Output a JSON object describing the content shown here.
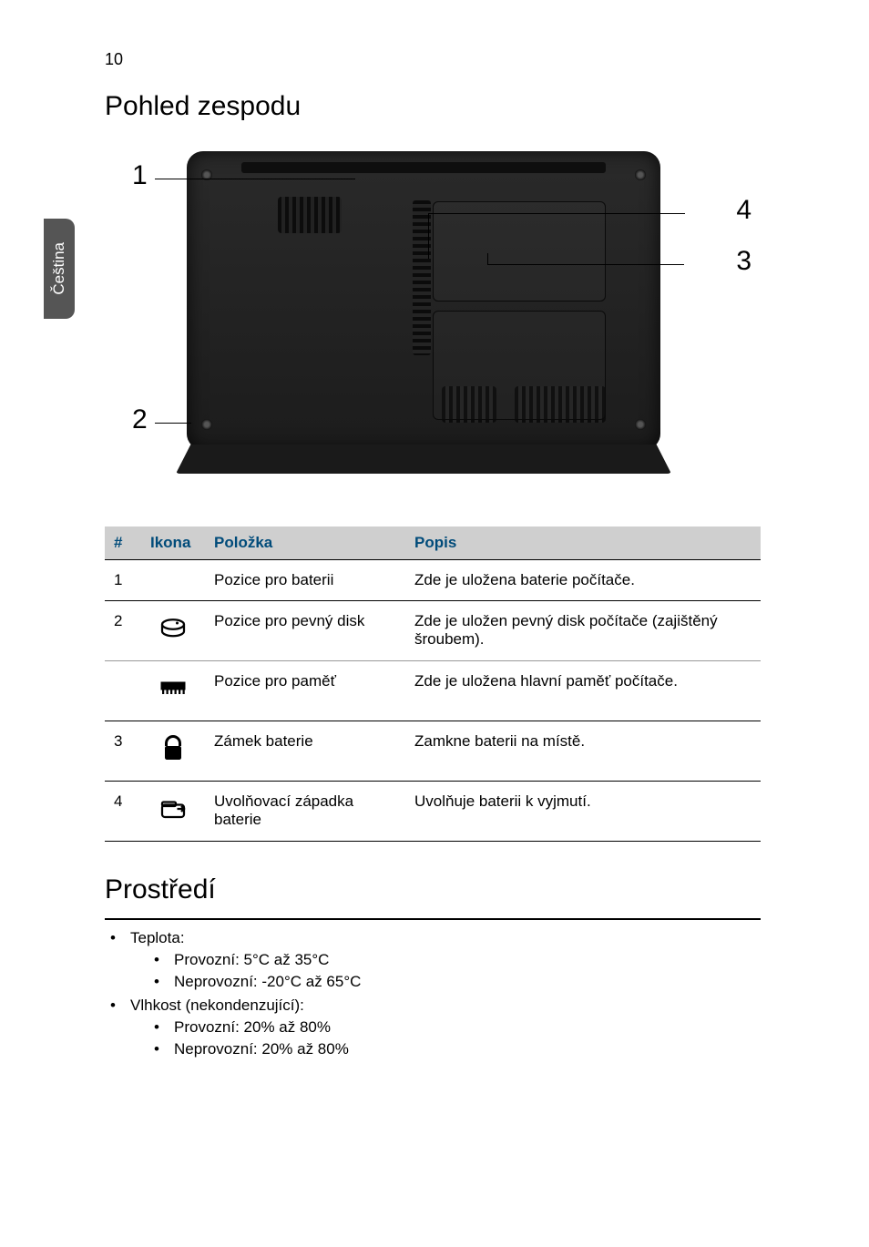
{
  "page_number": "10",
  "side_tab_label": "Čeština",
  "section_title": "Pohled zespodu",
  "diagram": {
    "callouts": [
      "1",
      "2",
      "3",
      "4"
    ]
  },
  "table": {
    "headers": {
      "num": "#",
      "icon": "Ikona",
      "item": "Položka",
      "desc": "Popis"
    },
    "rows": [
      {
        "num": "1",
        "icon": null,
        "item": "Pozice pro baterii",
        "desc": "Zde je uložena baterie počítače."
      },
      {
        "num": "2",
        "icon": "hdd",
        "item": "Pozice pro pevný disk",
        "desc": "Zde je uložen pevný disk počítače (zajištěný šroubem)."
      },
      {
        "num": "",
        "icon": "ram",
        "item": "Pozice pro paměť",
        "desc": "Zde je uložena hlavní paměť počítače."
      },
      {
        "num": "3",
        "icon": "lock",
        "item": "Zámek baterie",
        "desc": "Zamkne baterii na místě."
      },
      {
        "num": "4",
        "icon": "release",
        "item": "Uvolňovací západka baterie",
        "desc": "Uvolňuje baterii k vyjmutí."
      }
    ]
  },
  "environment": {
    "title": "Prostředí",
    "items": [
      {
        "label": "Teplota:",
        "sub": [
          "Provozní: 5°C až 35°C",
          "Neprovozní: -20°C až 65°C"
        ]
      },
      {
        "label": "Vlhkost (nekondenzující):",
        "sub": [
          "Provozní: 20% až 80%",
          "Neprovozní: 20% až 80%"
        ]
      }
    ]
  },
  "colors": {
    "header_text": "#004b7a",
    "header_bg": "#cfcfcf",
    "tab_bg": "#555555"
  }
}
